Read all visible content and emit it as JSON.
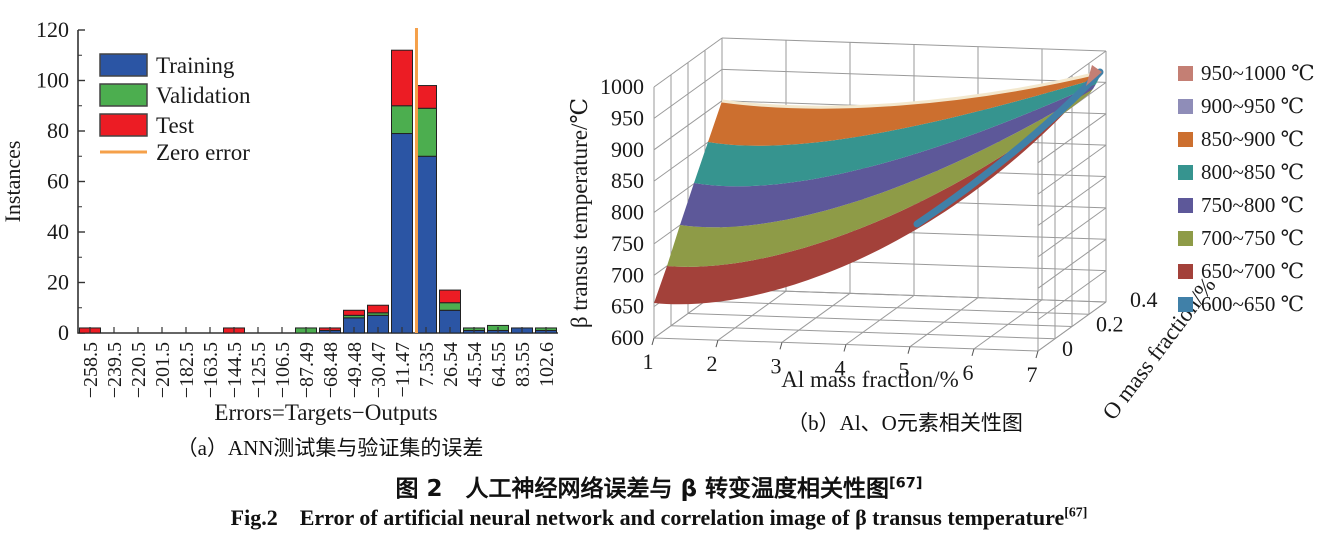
{
  "figure": {
    "caption_cn": "图 2　人工神经网络误差与 β 转变温度相关性图",
    "caption_cn_ref": "[67]",
    "caption_en": "Fig.2　Error of artificial neural network and correlation image of β transus temperature",
    "caption_en_ref": "[67]"
  },
  "panel_a": {
    "subcaption": "（a）ANN测试集与验证集的误差"
  },
  "panel_b": {
    "subcaption": "（b）Al、O元素相关性图"
  },
  "chart_data": [
    {
      "type": "bar",
      "stacked": true,
      "xlabel": "Errors=Targets−Outputs",
      "ylabel": "Instances",
      "ylim": [
        0,
        120
      ],
      "yticks": [
        0,
        20,
        40,
        60,
        80,
        100,
        120
      ],
      "grid": false,
      "legend_position": "upper-left",
      "categories": [
        "−258.5",
        "−239.5",
        "−220.5",
        "−201.5",
        "−182.5",
        "−163.5",
        "−144.5",
        "−125.5",
        "−106.5",
        "−87.49",
        "−68.48",
        "−49.48",
        "−30.47",
        "−11.47",
        "7.535",
        "26.54",
        "45.54",
        "64.55",
        "83.55",
        "102.6"
      ],
      "series": [
        {
          "name": "Training",
          "color": "#2b55a4",
          "values": [
            0,
            0,
            0,
            0,
            0,
            0,
            0,
            0,
            0,
            0,
            1,
            6,
            7,
            79,
            70,
            9,
            1,
            1,
            2,
            1
          ]
        },
        {
          "name": "Validation",
          "color": "#4cae4f",
          "values": [
            0,
            0,
            0,
            0,
            0,
            0,
            0,
            0,
            0,
            2,
            0,
            1,
            1,
            11,
            19,
            3,
            1,
            2,
            0,
            1
          ]
        },
        {
          "name": "Test",
          "color": "#ec1c24",
          "values": [
            2,
            0,
            0,
            0,
            0,
            0,
            2,
            0,
            0,
            0,
            1,
            2,
            3,
            22,
            9,
            5,
            0,
            0,
            0,
            0
          ]
        }
      ],
      "zero_line": {
        "label": "Zero error",
        "color": "#f5a04a",
        "x_value": 0
      }
    },
    {
      "type": "surface",
      "xlabel": "Al mass fraction/%",
      "x_ticks": [
        1,
        2,
        3,
        4,
        5,
        6,
        7
      ],
      "ylabel": "O mass fraction/%",
      "y_ticks": [
        "0",
        "0.2",
        "0.4"
      ],
      "zlabel": "β transus temperature/℃",
      "z_ticks": [
        600,
        650,
        700,
        750,
        800,
        850,
        900,
        950,
        1000
      ],
      "zlim": [
        600,
        1000
      ],
      "surface_summary": "β transus temperature rises from ≈655 ℃ at Al=1,O=0 to ≈1000 ℃ toward Al=7,O=0.4; colored in 50 ℃ bands",
      "legend": [
        {
          "label": "950~1000 ℃",
          "color": "#c47f74"
        },
        {
          "label": "900~950 ℃",
          "color": "#8f8db8"
        },
        {
          "label": "850~900 ℃",
          "color": "#cc6f2f"
        },
        {
          "label": "800~850 ℃",
          "color": "#36948f"
        },
        {
          "label": "750~800 ℃",
          "color": "#5d5899"
        },
        {
          "label": "700~750 ℃",
          "color": "#8e9b47"
        },
        {
          "label": "650~700 ℃",
          "color": "#a3413a"
        },
        {
          "label": "600~650 ℃",
          "color": "#4080a8"
        }
      ]
    }
  ]
}
